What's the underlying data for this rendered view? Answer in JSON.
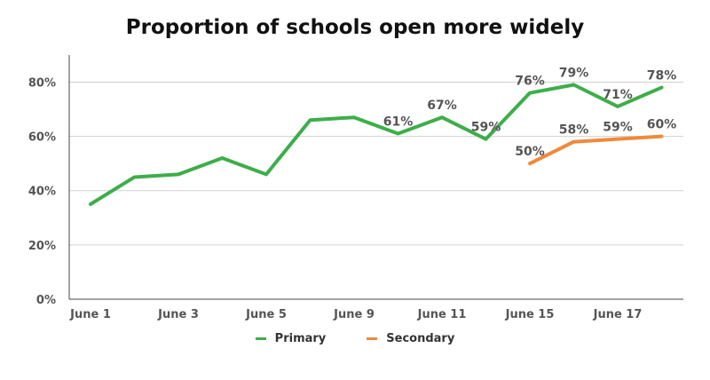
{
  "chart_data": {
    "type": "line",
    "title": "Proportion of schools open more widely",
    "xlabel": "",
    "ylabel": "",
    "ylim": [
      0,
      88
    ],
    "yticks": [
      "0%",
      "20%",
      "40%",
      "60%",
      "80%"
    ],
    "ytick_values": [
      0,
      20,
      40,
      60,
      80
    ],
    "grid": true,
    "legend_position": "bottom",
    "x_tick_labels": [
      "June 1",
      "June 3",
      "June 5",
      "June 9",
      "June 11",
      "June 15",
      "June 17"
    ],
    "x_tick_indices": [
      0,
      2,
      4,
      6,
      8,
      10,
      12
    ],
    "series": [
      {
        "name": "Primary",
        "color": "#3dae49",
        "values": [
          35,
          45,
          46,
          52,
          46,
          66,
          67,
          61,
          67,
          59,
          76,
          79,
          71,
          78
        ],
        "labels": [
          null,
          null,
          null,
          null,
          null,
          null,
          null,
          "61%",
          "67%",
          "59%",
          "76%",
          "79%",
          "71%",
          "78%"
        ]
      },
      {
        "name": "Secondary",
        "color": "#ef8a3c",
        "values": [
          null,
          null,
          null,
          null,
          null,
          null,
          null,
          null,
          null,
          null,
          50,
          58,
          59,
          60
        ],
        "labels": [
          null,
          null,
          null,
          null,
          null,
          null,
          null,
          null,
          null,
          null,
          "50%",
          "58%",
          "59%",
          "60%"
        ]
      }
    ]
  }
}
